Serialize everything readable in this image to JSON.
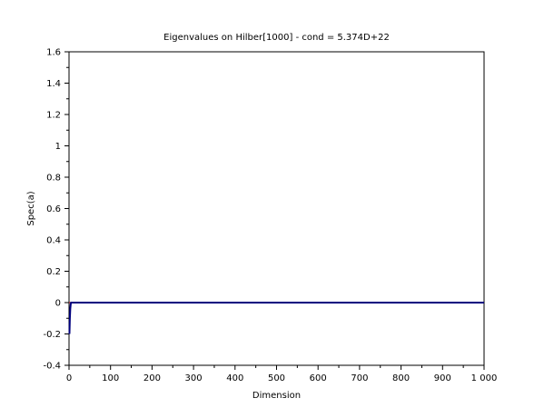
{
  "chart_data": {
    "type": "line",
    "title": "Eigenvalues on Hilber[1000] - cond = 5.374D+22",
    "xlabel": "Dimension",
    "ylabel": "Spec(a)",
    "xlim": [
      0,
      1000
    ],
    "ylim": [
      -0.4,
      1.6
    ],
    "x_ticks": [
      0,
      100,
      200,
      300,
      400,
      500,
      600,
      700,
      800,
      900,
      1000
    ],
    "x_tick_labels": [
      "0",
      "100",
      "200",
      "300",
      "400",
      "500",
      "600",
      "700",
      "800",
      "900",
      "1 000"
    ],
    "y_ticks": [
      -0.4,
      -0.2,
      0,
      0.2,
      0.4,
      0.6,
      0.8,
      1,
      1.2,
      1.4,
      1.6
    ],
    "y_tick_labels": [
      "-0.4",
      "-0.2",
      "0",
      "0.2",
      "0.4",
      "0.6",
      "0.8",
      "1",
      "1.2",
      "1.4",
      "1.6"
    ],
    "grid": false,
    "reference_line": {
      "y": 0,
      "color": "#cc0000"
    },
    "series": [
      {
        "color": "#00007f",
        "x": [
          1,
          2,
          3,
          4,
          5,
          10,
          20,
          50,
          100,
          200,
          300,
          400,
          500,
          600,
          700,
          800,
          900,
          1000
        ],
        "y": [
          -0.2,
          -0.1,
          -0.04,
          -0.01,
          0,
          0,
          0,
          0,
          0,
          0,
          0,
          0,
          0,
          0,
          0,
          0,
          0,
          0
        ]
      }
    ]
  }
}
